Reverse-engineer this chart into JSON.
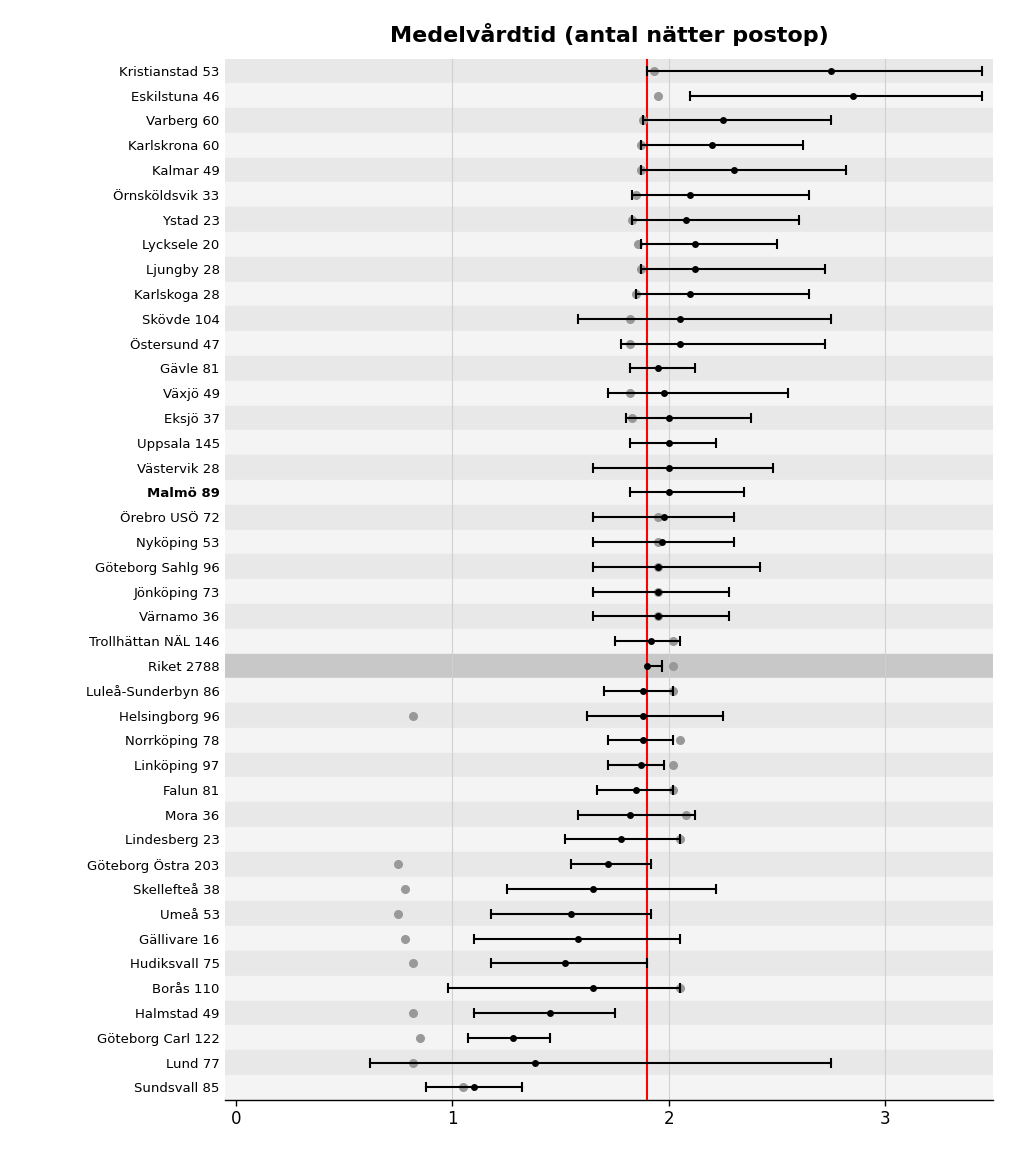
{
  "title": "Medelvårdtid (antal nätter postop)",
  "reference_line": 1.9,
  "xlim": [
    -0.05,
    3.5
  ],
  "xticks": [
    0,
    1,
    2,
    3
  ],
  "background_color": "#ffffff",
  "row_color_even": "#e8e8e8",
  "row_color_odd": "#f4f4f4",
  "riket_row_color": "#c8c8c8",
  "entries": [
    {
      "label": "Kristianstad 53",
      "mean": 2.75,
      "ci_low": 1.9,
      "ci_high": 3.45,
      "gray_dot": 1.93,
      "bold": false
    },
    {
      "label": "Eskilstuna 46",
      "mean": 2.85,
      "ci_low": 2.1,
      "ci_high": 3.45,
      "gray_dot": 1.95,
      "bold": false
    },
    {
      "label": "Varberg 60",
      "mean": 2.25,
      "ci_low": 1.88,
      "ci_high": 2.75,
      "gray_dot": 1.88,
      "bold": false
    },
    {
      "label": "Karlskrona 60",
      "mean": 2.2,
      "ci_low": 1.87,
      "ci_high": 2.62,
      "gray_dot": 1.87,
      "bold": false
    },
    {
      "label": "Kalmar 49",
      "mean": 2.3,
      "ci_low": 1.87,
      "ci_high": 2.82,
      "gray_dot": 1.87,
      "bold": false
    },
    {
      "label": "Örnsköldsvik 33",
      "mean": 2.1,
      "ci_low": 1.83,
      "ci_high": 2.65,
      "gray_dot": 1.85,
      "bold": false
    },
    {
      "label": "Ystad 23",
      "mean": 2.08,
      "ci_low": 1.83,
      "ci_high": 2.6,
      "gray_dot": 1.83,
      "bold": false
    },
    {
      "label": "Lycksele 20",
      "mean": 2.12,
      "ci_low": 1.87,
      "ci_high": 2.5,
      "gray_dot": 1.86,
      "bold": false
    },
    {
      "label": "Ljungby 28",
      "mean": 2.12,
      "ci_low": 1.87,
      "ci_high": 2.72,
      "gray_dot": 1.87,
      "bold": false
    },
    {
      "label": "Karlskoga 28",
      "mean": 2.1,
      "ci_low": 1.85,
      "ci_high": 2.65,
      "gray_dot": 1.85,
      "bold": false
    },
    {
      "label": "Skövde 104",
      "mean": 2.05,
      "ci_low": 1.58,
      "ci_high": 2.75,
      "gray_dot": 1.82,
      "bold": false
    },
    {
      "label": "Östersund 47",
      "mean": 2.05,
      "ci_low": 1.78,
      "ci_high": 2.72,
      "gray_dot": 1.82,
      "bold": false
    },
    {
      "label": "Gävle 81",
      "mean": 1.95,
      "ci_low": 1.82,
      "ci_high": 2.12,
      "gray_dot": null,
      "bold": false
    },
    {
      "label": "Växjö 49",
      "mean": 1.98,
      "ci_low": 1.72,
      "ci_high": 2.55,
      "gray_dot": 1.82,
      "bold": false
    },
    {
      "label": "Eksjö 37",
      "mean": 2.0,
      "ci_low": 1.8,
      "ci_high": 2.38,
      "gray_dot": 1.83,
      "bold": false
    },
    {
      "label": "Uppsala 145",
      "mean": 2.0,
      "ci_low": 1.82,
      "ci_high": 2.22,
      "gray_dot": null,
      "bold": false
    },
    {
      "label": "Västervik 28",
      "mean": 2.0,
      "ci_low": 1.65,
      "ci_high": 2.48,
      "gray_dot": null,
      "bold": false
    },
    {
      "label": "Malmö 89",
      "mean": 2.0,
      "ci_low": 1.82,
      "ci_high": 2.35,
      "gray_dot": null,
      "bold": false
    },
    {
      "label": "Örebro USÖ 72",
      "mean": 1.98,
      "ci_low": 1.65,
      "ci_high": 2.3,
      "gray_dot": 1.95,
      "bold": false
    },
    {
      "label": "Nyköping 53",
      "mean": 1.97,
      "ci_low": 1.65,
      "ci_high": 2.3,
      "gray_dot": 1.95,
      "bold": false
    },
    {
      "label": "Göteborg Sahlg 96",
      "mean": 1.95,
      "ci_low": 1.65,
      "ci_high": 2.42,
      "gray_dot": 1.95,
      "bold": false
    },
    {
      "label": "Jönköping 73",
      "mean": 1.95,
      "ci_low": 1.65,
      "ci_high": 2.28,
      "gray_dot": 1.95,
      "bold": false
    },
    {
      "label": "Värnamo 36",
      "mean": 1.95,
      "ci_low": 1.65,
      "ci_high": 2.28,
      "gray_dot": 1.95,
      "bold": false
    },
    {
      "label": "Trollhättan NÄL 146",
      "mean": 1.92,
      "ci_low": 1.75,
      "ci_high": 2.05,
      "gray_dot": 2.02,
      "bold": false
    },
    {
      "label": "Riket 2788",
      "mean": 1.9,
      "ci_low": null,
      "ci_high": 1.97,
      "gray_dot": 2.02,
      "bold": true
    },
    {
      "label": "Luleå-Sunderbyn 86",
      "mean": 1.88,
      "ci_low": 1.7,
      "ci_high": 2.02,
      "gray_dot": 2.02,
      "bold": false
    },
    {
      "label": "Helsingborg 96",
      "mean": 1.88,
      "ci_low": 1.62,
      "ci_high": 2.25,
      "gray_dot": 0.82,
      "bold": false
    },
    {
      "label": "Norrköping 78",
      "mean": 1.88,
      "ci_low": 1.72,
      "ci_high": 2.02,
      "gray_dot": 2.05,
      "bold": false
    },
    {
      "label": "Linköping 97",
      "mean": 1.87,
      "ci_low": 1.72,
      "ci_high": 1.98,
      "gray_dot": 2.02,
      "bold": false
    },
    {
      "label": "Falun 81",
      "mean": 1.85,
      "ci_low": 1.67,
      "ci_high": 2.02,
      "gray_dot": 2.02,
      "bold": false
    },
    {
      "label": "Mora 36",
      "mean": 1.82,
      "ci_low": 1.58,
      "ci_high": 2.12,
      "gray_dot": 2.08,
      "bold": false
    },
    {
      "label": "Lindesberg 23",
      "mean": 1.78,
      "ci_low": 1.52,
      "ci_high": 2.05,
      "gray_dot": 2.05,
      "bold": false
    },
    {
      "label": "Göteborg Östra 203",
      "mean": 1.72,
      "ci_low": 1.55,
      "ci_high": 1.92,
      "gray_dot": 0.75,
      "bold": false
    },
    {
      "label": "Skellefteå 38",
      "mean": 1.65,
      "ci_low": 1.25,
      "ci_high": 2.22,
      "gray_dot": 0.78,
      "bold": false
    },
    {
      "label": "Umeå 53",
      "mean": 1.55,
      "ci_low": 1.18,
      "ci_high": 1.92,
      "gray_dot": 0.75,
      "bold": false
    },
    {
      "label": "Gällivare 16",
      "mean": 1.58,
      "ci_low": 1.1,
      "ci_high": 2.05,
      "gray_dot": 0.78,
      "bold": false
    },
    {
      "label": "Hudiksvall 75",
      "mean": 1.52,
      "ci_low": 1.18,
      "ci_high": 1.9,
      "gray_dot": 0.82,
      "bold": false
    },
    {
      "label": "Borås 110",
      "mean": 1.65,
      "ci_low": 0.98,
      "ci_high": 2.05,
      "gray_dot": 2.05,
      "bold": false
    },
    {
      "label": "Halmstad 49",
      "mean": 1.45,
      "ci_low": 1.1,
      "ci_high": 1.75,
      "gray_dot": 0.82,
      "bold": false
    },
    {
      "label": "Göteborg Carl 122",
      "mean": 1.28,
      "ci_low": 1.07,
      "ci_high": 1.45,
      "gray_dot": 0.85,
      "bold": false
    },
    {
      "label": "Lund 77",
      "mean": 1.38,
      "ci_low": 0.62,
      "ci_high": 2.75,
      "gray_dot": 0.82,
      "bold": false
    },
    {
      "label": "Sundsvall 85",
      "mean": 1.1,
      "ci_low": 0.88,
      "ci_high": 1.32,
      "gray_dot": 1.05,
      "bold": false
    }
  ]
}
